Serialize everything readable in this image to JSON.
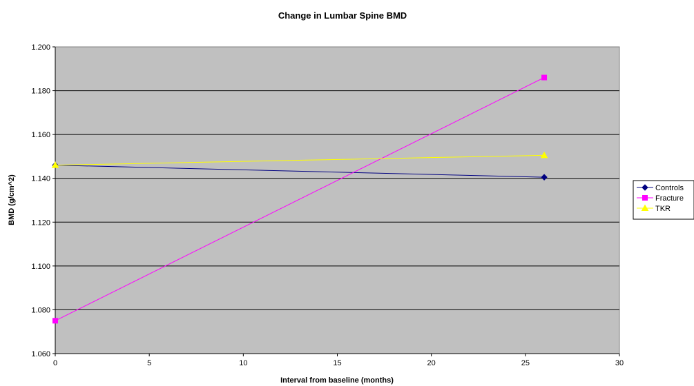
{
  "chart_data": {
    "type": "line",
    "title": "Change in Lumbar Spine BMD",
    "xlabel": "Interval from baseline (months)",
    "ylabel": "BMD (g/cm^2)",
    "xlim": [
      0,
      30
    ],
    "ylim": [
      1.06,
      1.2
    ],
    "x_ticks": [
      "0",
      "5",
      "10",
      "15",
      "20",
      "25",
      "30"
    ],
    "y_ticks": [
      "1.060",
      "1.080",
      "1.100",
      "1.120",
      "1.140",
      "1.160",
      "1.180",
      "1.200"
    ],
    "grid": "horizontal",
    "plot_background": "#c0c0c0",
    "legend_position": "right",
    "series": [
      {
        "name": "Controls",
        "color": "#000080",
        "marker": "diamond",
        "points": [
          {
            "x": 0,
            "y": 1.146
          },
          {
            "x": 26,
            "y": 1.1405
          }
        ]
      },
      {
        "name": "Fracture",
        "color": "#ff00ff",
        "marker": "square",
        "points": [
          {
            "x": 0,
            "y": 1.075
          },
          {
            "x": 26,
            "y": 1.186
          }
        ]
      },
      {
        "name": "TKR",
        "color": "#ffff00",
        "marker": "triangle",
        "points": [
          {
            "x": 0,
            "y": 1.146
          },
          {
            "x": 26,
            "y": 1.1505
          }
        ]
      }
    ]
  }
}
